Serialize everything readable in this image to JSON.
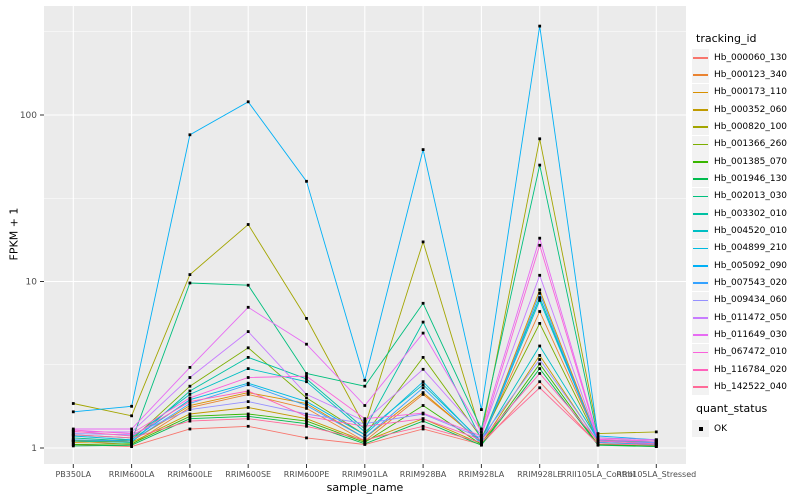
{
  "chart_data": {
    "type": "line",
    "xlabel": "sample_name",
    "ylabel": "FPKM + 1",
    "y_scale": "log10",
    "y_ticks": [
      1,
      10,
      100
    ],
    "y_tick_labels": [
      "1",
      "10",
      "100"
    ],
    "y_minor_ticks": [
      3.1623,
      31.623,
      316.23
    ],
    "legend_title": "tracking_id",
    "quant_legend": {
      "title": "quant_status",
      "items": [
        {
          "label": "OK",
          "marker": "black-square"
        }
      ]
    },
    "categories": [
      "PB350LA",
      "RRIM600LA",
      "RRIM600LE",
      "RRIM600SE",
      "RRIM600PE",
      "RRIM901LA",
      "RRIM928BA",
      "RRIM928LA",
      "RRIM928LE",
      "RRII105LA_Control",
      "RRII105LA_Stressed"
    ],
    "series": [
      {
        "name": "Hb_000060_130",
        "color": "#F8766D",
        "values": [
          1.05,
          1.02,
          1.3,
          1.35,
          1.15,
          1.05,
          1.3,
          1.05,
          2.5,
          1.05,
          1.02
        ]
      },
      {
        "name": "Hb_000123_340",
        "color": "#EA8331",
        "values": [
          1.1,
          1.05,
          1.75,
          2.1,
          1.73,
          1.1,
          2.1,
          1.1,
          6.6,
          1.12,
          1.05
        ]
      },
      {
        "name": "Hb_000173_110",
        "color": "#D89000",
        "values": [
          1.08,
          1.1,
          1.8,
          2.15,
          1.85,
          1.15,
          2.15,
          1.08,
          8.9,
          1.1,
          1.08
        ]
      },
      {
        "name": "Hb_000352_060",
        "color": "#C09B00",
        "values": [
          1.12,
          1.08,
          1.6,
          1.75,
          1.5,
          1.1,
          1.5,
          1.06,
          3.6,
          1.08,
          1.05
        ]
      },
      {
        "name": "Hb_000820_100",
        "color": "#A3A500",
        "values": [
          1.85,
          1.56,
          11.0,
          22.0,
          6.0,
          1.35,
          17.3,
          1.2,
          72.0,
          1.22,
          1.25
        ]
      },
      {
        "name": "Hb_001366_260",
        "color": "#7CAE00",
        "values": [
          1.1,
          1.12,
          2.35,
          4.0,
          2.0,
          1.2,
          3.5,
          1.15,
          5.6,
          1.1,
          1.1
        ]
      },
      {
        "name": "Hb_001385_070",
        "color": "#39B600",
        "values": [
          1.05,
          1.06,
          1.55,
          1.6,
          1.45,
          1.08,
          1.8,
          1.05,
          3.2,
          1.05,
          1.03
        ]
      },
      {
        "name": "Hb_001946_130",
        "color": "#00BB4E",
        "values": [
          1.03,
          1.04,
          1.5,
          1.55,
          1.4,
          1.06,
          1.45,
          1.04,
          3.0,
          1.04,
          1.02
        ]
      },
      {
        "name": "Hb_002013_030",
        "color": "#00BF7D",
        "values": [
          1.15,
          1.1,
          9.8,
          9.5,
          2.8,
          2.35,
          7.4,
          1.3,
          50.0,
          1.15,
          1.12
        ]
      },
      {
        "name": "Hb_003302_010",
        "color": "#00C1A3",
        "values": [
          1.1,
          1.08,
          2.2,
          3.5,
          2.6,
          1.3,
          5.7,
          1.12,
          8.0,
          1.1,
          1.08
        ]
      },
      {
        "name": "Hb_004520_010",
        "color": "#00BFC4",
        "values": [
          1.2,
          1.15,
          2.1,
          3.0,
          2.5,
          1.25,
          2.4,
          1.1,
          4.1,
          1.12,
          1.1
        ]
      },
      {
        "name": "Hb_004899_210",
        "color": "#00BAE0",
        "values": [
          1.18,
          1.12,
          1.95,
          2.45,
          1.9,
          1.2,
          2.5,
          1.08,
          7.7,
          1.1,
          1.07
        ]
      },
      {
        "name": "Hb_005092_090",
        "color": "#00B0F6",
        "values": [
          1.65,
          1.78,
          76.0,
          120.0,
          40.0,
          2.55,
          62.0,
          1.7,
          342.0,
          1.18,
          1.12
        ]
      },
      {
        "name": "Hb_007543_020",
        "color": "#35A2FF",
        "values": [
          1.12,
          1.1,
          1.85,
          2.4,
          1.8,
          1.15,
          2.3,
          1.06,
          8.5,
          1.08,
          1.05
        ]
      },
      {
        "name": "Hb_009434_060",
        "color": "#9590FF",
        "values": [
          1.22,
          1.2,
          1.7,
          1.9,
          1.6,
          1.4,
          1.6,
          1.15,
          3.4,
          1.1,
          1.08
        ]
      },
      {
        "name": "Hb_011472_050",
        "color": "#C77CFF",
        "values": [
          1.25,
          1.25,
          2.65,
          5.0,
          2.1,
          1.45,
          2.97,
          1.2,
          10.9,
          1.12,
          1.1
        ]
      },
      {
        "name": "Hb_011649_030",
        "color": "#E76BF3",
        "values": [
          1.3,
          1.3,
          3.05,
          7.0,
          4.2,
          1.8,
          4.9,
          1.25,
          18.2,
          1.15,
          1.12
        ]
      },
      {
        "name": "Hb_067472_010",
        "color": "#FA62DB",
        "values": [
          1.28,
          1.22,
          2.0,
          2.65,
          2.7,
          1.5,
          1.62,
          1.18,
          16.5,
          1.13,
          1.1
        ]
      },
      {
        "name": "Hb_116784_020",
        "color": "#FF62BC",
        "values": [
          1.26,
          1.18,
          1.9,
          2.2,
          1.55,
          1.35,
          1.5,
          1.12,
          2.8,
          1.1,
          1.06
        ]
      },
      {
        "name": "Hb_142522_040",
        "color": "#FF6A98",
        "values": [
          1.2,
          1.15,
          1.45,
          1.5,
          1.35,
          1.12,
          1.35,
          1.08,
          2.3,
          1.06,
          1.04
        ]
      }
    ],
    "layout": {
      "grid": "on",
      "legend_position": "right"
    }
  },
  "colors": {
    "panel_bg": "#EBEBEB",
    "grid": "#FFFFFF",
    "tick_mark": "#333333",
    "tick_label": "#4D4D4D",
    "point": "#000000",
    "legend_key_bg": "#F2F2F2"
  }
}
